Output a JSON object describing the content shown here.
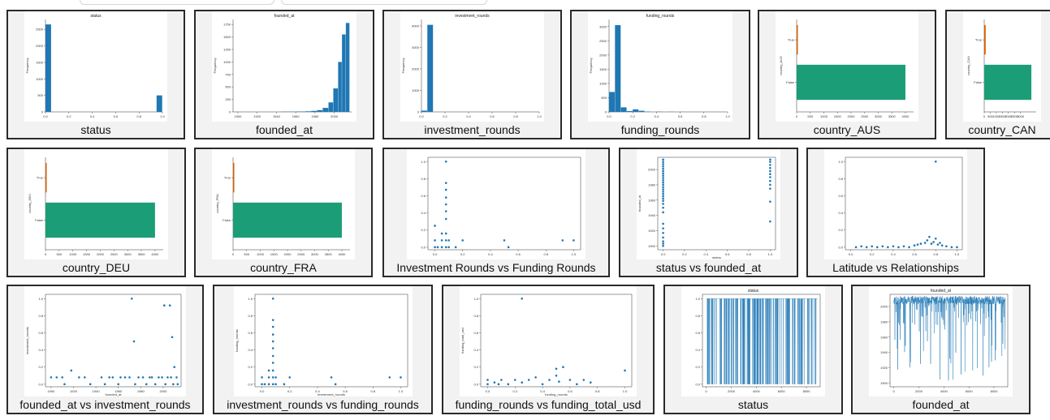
{
  "colors": {
    "blue": "#1f77b4",
    "green": "#1b9e77",
    "orange": "#d95f02"
  },
  "cards": [
    {
      "caption": "status",
      "chart_title": "status",
      "type": "hist",
      "ylabel": "Frequency",
      "x_ticks": [
        "0.0",
        "0.2",
        "0.4",
        "0.6",
        "0.8",
        "1.0"
      ],
      "xlim": [
        0,
        1
      ],
      "y_ticks": [
        "0",
        "500",
        "1000",
        "1500",
        "2000",
        "2500"
      ],
      "ylim": [
        0,
        2800
      ],
      "bins": [
        {
          "x0": 0.0,
          "x1": 0.05,
          "y": 2650
        },
        {
          "x0": 0.95,
          "x1": 1.0,
          "y": 500
        }
      ]
    },
    {
      "caption": "founded_at",
      "chart_title": "founded_at",
      "type": "hist",
      "ylabel": "Frequency",
      "x_ticks": [
        "1900",
        "1920",
        "1940",
        "1960",
        "1980",
        "2000"
      ],
      "xlim": [
        1895,
        2018
      ],
      "y_ticks": [
        "0",
        "250",
        "500",
        "750",
        "1000",
        "1250",
        "1500",
        "1750"
      ],
      "ylim": [
        0,
        1850
      ],
      "bins": [
        {
          "x0": 1945,
          "x1": 1960,
          "y": 5
        },
        {
          "x0": 1960,
          "x1": 1970,
          "y": 8
        },
        {
          "x0": 1970,
          "x1": 1976,
          "y": 12
        },
        {
          "x0": 1976,
          "x1": 1982,
          "y": 20
        },
        {
          "x0": 1982,
          "x1": 1988,
          "y": 35
        },
        {
          "x0": 1988,
          "x1": 1994,
          "y": 80
        },
        {
          "x0": 1994,
          "x1": 1999,
          "y": 190
        },
        {
          "x0": 1999,
          "x1": 2004,
          "y": 470
        },
        {
          "x0": 2004,
          "x1": 2008,
          "y": 1000
        },
        {
          "x0": 2008,
          "x1": 2012,
          "y": 1550
        },
        {
          "x0": 2012,
          "x1": 2016,
          "y": 1780
        }
      ]
    },
    {
      "caption": "investment_rounds",
      "chart_title": "investment_rounds",
      "type": "hist",
      "ylabel": "Frequency",
      "x_ticks": [
        "0.0",
        "0.2",
        "0.4",
        "0.6",
        "0.8",
        "1.0"
      ],
      "xlim": [
        0,
        1
      ],
      "y_ticks": [
        "0",
        "1000",
        "2000",
        "3000",
        "4000"
      ],
      "ylim": [
        0,
        4300
      ],
      "bins": [
        {
          "x0": 0.0,
          "x1": 0.05,
          "y": 60
        },
        {
          "x0": 0.05,
          "x1": 0.1,
          "y": 4050
        }
      ]
    },
    {
      "caption": "funding_rounds",
      "chart_title": "funding_rounds",
      "type": "hist",
      "ylabel": "Frequency",
      "x_ticks": [
        "0.0",
        "0.2",
        "0.4",
        "0.6",
        "0.8",
        "1.0"
      ],
      "xlim": [
        0,
        1
      ],
      "y_ticks": [
        "0",
        "500",
        "1000",
        "1500",
        "2000",
        "2500",
        "3000"
      ],
      "ylim": [
        0,
        3250
      ],
      "bins": [
        {
          "x0": 0.0,
          "x1": 0.05,
          "y": 700
        },
        {
          "x0": 0.05,
          "x1": 0.1,
          "y": 3050
        },
        {
          "x0": 0.1,
          "x1": 0.15,
          "y": 160
        },
        {
          "x0": 0.15,
          "x1": 0.2,
          "y": 30
        },
        {
          "x0": 0.2,
          "x1": 0.25,
          "y": 90
        },
        {
          "x0": 0.25,
          "x1": 0.3,
          "y": 40
        },
        {
          "x0": 0.3,
          "x1": 0.35,
          "y": 10
        },
        {
          "x0": 0.4,
          "x1": 0.45,
          "y": 8
        },
        {
          "x0": 0.5,
          "x1": 0.55,
          "y": 5
        },
        {
          "x0": 0.6,
          "x1": 0.65,
          "y": 3
        }
      ]
    },
    {
      "caption": "country_AUS",
      "chart_title": "",
      "type": "barh",
      "ylabel": "country_AUS",
      "categories": [
        "True",
        "False"
      ],
      "values": [
        40,
        4000
      ],
      "x_ticks": [
        "0",
        "500",
        "1000",
        "1500",
        "2000",
        "2500",
        "3000",
        "3500",
        "4000"
      ],
      "xlim": [
        0,
        4300
      ]
    },
    {
      "caption": "country_CAN",
      "chart_title": "",
      "type": "barh",
      "ylabel": "country_CAN",
      "categories": [
        "True",
        "False"
      ],
      "values": [
        120,
        3900
      ],
      "x_ticks": [
        "0",
        "500",
        "1000",
        "1500",
        "2000",
        "2500",
        "3000"
      ],
      "xlim": [
        0,
        4300
      ]
    },
    {
      "caption": "country_DEU",
      "chart_title": "",
      "type": "barh",
      "ylabel": "country_DEU",
      "categories": [
        "True",
        "False"
      ],
      "values": [
        40,
        4000
      ],
      "x_ticks": [
        "0",
        "500",
        "1000",
        "1500",
        "2000",
        "2500",
        "3000",
        "3500",
        "4000"
      ],
      "xlim": [
        0,
        4300
      ]
    },
    {
      "caption": "country_FRA",
      "chart_title": "",
      "type": "barh",
      "ylabel": "country_FRA",
      "categories": [
        "True",
        "False"
      ],
      "values": [
        40,
        4000
      ],
      "x_ticks": [
        "0",
        "500",
        "1000",
        "1500",
        "2000",
        "2500",
        "3000",
        "3500",
        "4000"
      ],
      "xlim": [
        0,
        4300
      ]
    },
    {
      "caption": "Investment Rounds vs Funding Rounds",
      "chart_title": "",
      "type": "scatter",
      "xlabel": "",
      "ylabel": "",
      "x_ticks": [
        "0.0",
        "0.2",
        "0.4",
        "0.6",
        "0.8",
        "1.0"
      ],
      "xlim": [
        -0.05,
        1.05
      ],
      "y_ticks": [
        "0.0",
        "0.2",
        "0.4",
        "0.6",
        "0.8",
        "1.0"
      ],
      "ylim": [
        -0.03,
        1.05
      ],
      "points": [
        [
          0,
          0
        ],
        [
          0,
          0.08
        ],
        [
          0,
          0.25
        ],
        [
          0.02,
          0
        ],
        [
          0.05,
          0
        ],
        [
          0.05,
          0.08
        ],
        [
          0.05,
          0.16
        ],
        [
          0.08,
          0
        ],
        [
          0.08,
          0.08
        ],
        [
          0.08,
          0.16
        ],
        [
          0.08,
          0.33
        ],
        [
          0.08,
          0.42
        ],
        [
          0.08,
          0.5
        ],
        [
          0.08,
          0.58
        ],
        [
          0.08,
          0.67
        ],
        [
          0.08,
          0.75
        ],
        [
          0.08,
          1.0
        ],
        [
          0.1,
          0
        ],
        [
          0.1,
          0.08
        ],
        [
          0.15,
          0
        ],
        [
          0.2,
          0.08
        ],
        [
          0.5,
          0.08
        ],
        [
          0.53,
          0
        ],
        [
          0.92,
          0.08
        ],
        [
          1.0,
          0.08
        ]
      ]
    },
    {
      "caption": "status vs founded_at",
      "chart_title": "",
      "type": "scatter",
      "xlabel": "status",
      "ylabel": "founded_at",
      "x_ticks": [
        "0.0",
        "0.2",
        "0.4",
        "0.6",
        "0.8",
        "1.0"
      ],
      "xlim": [
        -0.05,
        1.05
      ],
      "y_ticks": [
        "1900",
        "1920",
        "1940",
        "1960",
        "1980",
        "2000"
      ],
      "ylim": [
        1895,
        2016
      ],
      "points": [
        [
          0,
          1900
        ],
        [
          0,
          1903
        ],
        [
          0,
          1906
        ],
        [
          0,
          1911
        ],
        [
          0,
          1917
        ],
        [
          0,
          1923
        ],
        [
          0,
          1929
        ],
        [
          0,
          1944
        ],
        [
          0,
          1950
        ],
        [
          0,
          1955
        ],
        [
          0,
          1959
        ],
        [
          0,
          1962
        ],
        [
          0,
          1965
        ],
        [
          0,
          1968
        ],
        [
          0,
          1971
        ],
        [
          0,
          1974
        ],
        [
          0,
          1977
        ],
        [
          0,
          1980
        ],
        [
          0,
          1983
        ],
        [
          0,
          1986
        ],
        [
          0,
          1989
        ],
        [
          0,
          1992
        ],
        [
          0,
          1995
        ],
        [
          0,
          1998
        ],
        [
          0,
          2001
        ],
        [
          0,
          2004
        ],
        [
          0,
          2007
        ],
        [
          0,
          2010
        ],
        [
          0,
          2013
        ],
        [
          1,
          1932
        ],
        [
          1,
          1958
        ],
        [
          1,
          1975
        ],
        [
          1,
          1980
        ],
        [
          1,
          1985
        ],
        [
          1,
          1990
        ],
        [
          1,
          1994
        ],
        [
          1,
          1998
        ],
        [
          1,
          2002
        ],
        [
          1,
          2006
        ],
        [
          1,
          2010
        ],
        [
          1,
          2013
        ]
      ]
    },
    {
      "caption": "Latitude vs Relationships",
      "chart_title": "",
      "type": "scatter",
      "xlabel": "",
      "ylabel": "",
      "x_ticks": [
        "0.0",
        "0.2",
        "0.4",
        "0.6",
        "0.8",
        "1.0"
      ],
      "xlim": [
        -0.05,
        1.05
      ],
      "y_ticks": [
        "0.0",
        "0.2",
        "0.4",
        "0.6",
        "0.8",
        "1.0"
      ],
      "ylim": [
        -0.03,
        1.05
      ],
      "points": [
        [
          0.05,
          0
        ],
        [
          0.1,
          0.01
        ],
        [
          0.15,
          0
        ],
        [
          0.2,
          0.01
        ],
        [
          0.25,
          0
        ],
        [
          0.3,
          0.01
        ],
        [
          0.35,
          0
        ],
        [
          0.4,
          0.01
        ],
        [
          0.45,
          0
        ],
        [
          0.5,
          0.01
        ],
        [
          0.55,
          0
        ],
        [
          0.6,
          0.02
        ],
        [
          0.63,
          0.03
        ],
        [
          0.66,
          0.04
        ],
        [
          0.7,
          0.05
        ],
        [
          0.72,
          0.08
        ],
        [
          0.74,
          0.12
        ],
        [
          0.76,
          0.04
        ],
        [
          0.78,
          0.06
        ],
        [
          0.8,
          0.1
        ],
        [
          0.82,
          0.03
        ],
        [
          0.84,
          0.05
        ],
        [
          0.86,
          0.02
        ],
        [
          0.9,
          0.01
        ],
        [
          0.95,
          0
        ],
        [
          1.0,
          0
        ],
        [
          0.8,
          1.0
        ]
      ]
    },
    {
      "caption": "founded_at vs investment_rounds",
      "chart_title": "",
      "type": "scatter",
      "xlabel": "founded_at",
      "ylabel": "investment_rounds",
      "x_ticks": [
        "1900",
        "1920",
        "1940",
        "1960",
        "1980",
        "2000"
      ],
      "xlim": [
        1895,
        2016
      ],
      "y_ticks": [
        "0.0",
        "0.2",
        "0.4",
        "0.6",
        "0.8",
        "1.0"
      ],
      "ylim": [
        -0.03,
        1.05
      ],
      "points": [
        [
          1900,
          0.08
        ],
        [
          1905,
          0.08
        ],
        [
          1910,
          0.08
        ],
        [
          1912,
          0
        ],
        [
          1918,
          0.16
        ],
        [
          1925,
          0.08
        ],
        [
          1930,
          0.08
        ],
        [
          1935,
          0
        ],
        [
          1945,
          0.08
        ],
        [
          1948,
          0
        ],
        [
          1952,
          0.08
        ],
        [
          1955,
          0.08
        ],
        [
          1960,
          0
        ],
        [
          1962,
          0.08
        ],
        [
          1966,
          0.08
        ],
        [
          1970,
          0.08
        ],
        [
          1972,
          1.0
        ],
        [
          1974,
          0.5
        ],
        [
          1975,
          0
        ],
        [
          1978,
          0.08
        ],
        [
          1982,
          0.08
        ],
        [
          1985,
          0
        ],
        [
          1988,
          0.08
        ],
        [
          1990,
          0.08
        ],
        [
          1993,
          0
        ],
        [
          1996,
          0.08
        ],
        [
          1999,
          0.08
        ],
        [
          2001,
          0.92
        ],
        [
          2002,
          0
        ],
        [
          2004,
          0.08
        ],
        [
          2006,
          0.92
        ],
        [
          2007,
          0.08
        ],
        [
          2008,
          0.55
        ],
        [
          2009,
          0
        ],
        [
          2010,
          0.2
        ],
        [
          2012,
          0.08
        ],
        [
          2013,
          0
        ]
      ]
    },
    {
      "caption": "investment_rounds vs funding_rounds",
      "chart_title": "",
      "type": "scatter",
      "xlabel": "investment_rounds",
      "ylabel": "funding_rounds",
      "x_ticks": [
        "0.0",
        "0.2",
        "0.4",
        "0.6",
        "0.8",
        "1.0"
      ],
      "xlim": [
        -0.05,
        1.05
      ],
      "y_ticks": [
        "0.0",
        "0.2",
        "0.4",
        "0.6",
        "0.8",
        "1.0"
      ],
      "ylim": [
        -0.03,
        1.05
      ],
      "points": [
        [
          0,
          0
        ],
        [
          0,
          0.08
        ],
        [
          0.02,
          0
        ],
        [
          0.05,
          0
        ],
        [
          0.05,
          0.08
        ],
        [
          0.05,
          0.16
        ],
        [
          0.08,
          0
        ],
        [
          0.08,
          0.08
        ],
        [
          0.08,
          0.16
        ],
        [
          0.08,
          0.25
        ],
        [
          0.08,
          0.33
        ],
        [
          0.08,
          0.42
        ],
        [
          0.08,
          0.5
        ],
        [
          0.08,
          0.58
        ],
        [
          0.08,
          0.67
        ],
        [
          0.08,
          0.75
        ],
        [
          0.08,
          1.0
        ],
        [
          0.1,
          0
        ],
        [
          0.1,
          0.08
        ],
        [
          0.16,
          0
        ],
        [
          0.2,
          0.08
        ],
        [
          0.5,
          0.08
        ],
        [
          0.53,
          0
        ],
        [
          0.92,
          0.08
        ],
        [
          1.0,
          0.08
        ]
      ]
    },
    {
      "caption": "funding_rounds vs funding_total_usd",
      "chart_title": "",
      "type": "scatter",
      "xlabel": "funding_rounds",
      "ylabel": "funding_total_usd",
      "x_ticks": [
        "0.0",
        "0.2",
        "0.4",
        "0.6",
        "0.8",
        "1.0"
      ],
      "xlim": [
        -0.05,
        1.05
      ],
      "y_ticks": [
        "0.0",
        "0.2",
        "0.4",
        "0.6",
        "0.8",
        "1.0"
      ],
      "ylim": [
        -0.03,
        1.05
      ],
      "points": [
        [
          0,
          0
        ],
        [
          0,
          0.05
        ],
        [
          0.05,
          0.02
        ],
        [
          0.08,
          0
        ],
        [
          0.1,
          0.05
        ],
        [
          0.15,
          0
        ],
        [
          0.2,
          0.05
        ],
        [
          0.25,
          0.02
        ],
        [
          0.25,
          1.0
        ],
        [
          0.3,
          0.05
        ],
        [
          0.35,
          0.08
        ],
        [
          0.4,
          0
        ],
        [
          0.45,
          0.05
        ],
        [
          0.5,
          0.1
        ],
        [
          0.5,
          0.18
        ],
        [
          0.52,
          0.03
        ],
        [
          0.55,
          0.2
        ],
        [
          0.6,
          0.05
        ],
        [
          0.65,
          0
        ],
        [
          0.7,
          0.05
        ],
        [
          0.75,
          0.02
        ],
        [
          1.0,
          0.16
        ]
      ]
    },
    {
      "caption": "status",
      "chart_title": "status",
      "type": "lineplot",
      "xlabel": "",
      "ylabel": "",
      "x_ticks": [
        "0",
        "2000",
        "4000",
        "6000",
        "8000"
      ],
      "xlim": [
        -300,
        9100
      ],
      "y_ticks": [
        "0.0",
        "0.2",
        "0.4",
        "0.6",
        "0.8",
        "1.0"
      ],
      "ylim": [
        -0.03,
        1.05
      ],
      "series_kind": "binary",
      "n": 8900
    },
    {
      "caption": "founded_at",
      "chart_title": "founded_at",
      "type": "lineplot",
      "xlabel": "",
      "ylabel": "",
      "x_ticks": [
        "0",
        "2000",
        "4000",
        "6000",
        "8000"
      ],
      "xlim": [
        -300,
        9100
      ],
      "y_ticks": [
        "1900",
        "1920",
        "1940",
        "1960",
        "1980",
        "2000"
      ],
      "ylim": [
        1895,
        2016
      ],
      "series_kind": "years",
      "n": 8900
    }
  ]
}
